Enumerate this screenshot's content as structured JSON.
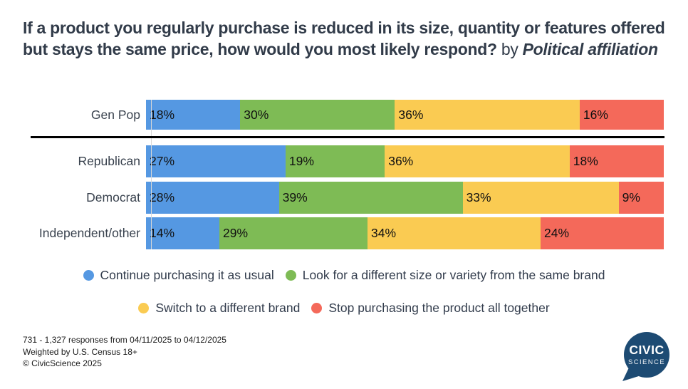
{
  "title": {
    "question": "If a product you regularly purchase is reduced in its size, quantity or features offered but stays the same price, how would you most likely respond?",
    "connector": " by ",
    "dimension": "Political affiliation"
  },
  "chart_data": {
    "type": "bar",
    "orientation": "horizontal",
    "stacked": true,
    "value_unit": "%",
    "categories": [
      "Gen Pop",
      "Republican",
      "Democrat",
      "Independent/other"
    ],
    "series": [
      {
        "name": "Continue purchasing it as usual",
        "color": "#5598E2",
        "values": [
          18,
          27,
          28,
          14
        ]
      },
      {
        "name": "Look for a different size or variety from the same brand",
        "color": "#7EBB55",
        "values": [
          30,
          19,
          39,
          29
        ]
      },
      {
        "name": "Switch to a different brand",
        "color": "#FACB52",
        "values": [
          36,
          36,
          33,
          34
        ]
      },
      {
        "name": "Stop purchasing the product all together",
        "color": "#F4695A",
        "values": [
          16,
          18,
          9,
          24
        ]
      }
    ],
    "legend_position": "bottom",
    "legend_rows": [
      [
        0,
        1
      ],
      [
        2,
        3
      ]
    ],
    "notes": "Gen Pop row is separated from the party rows by a black horizontal divider; segment widths are normalized to each row's total"
  },
  "footer": {
    "line1": "731 - 1,327 responses from 04/11/2025 to 04/12/2025",
    "line2": "Weighted by U.S. Census 18+",
    "line3": "© CivicScience 2025"
  },
  "logo": {
    "line1": "CIVIC",
    "line2": "SCIENCE",
    "color": "#1d4b73"
  }
}
